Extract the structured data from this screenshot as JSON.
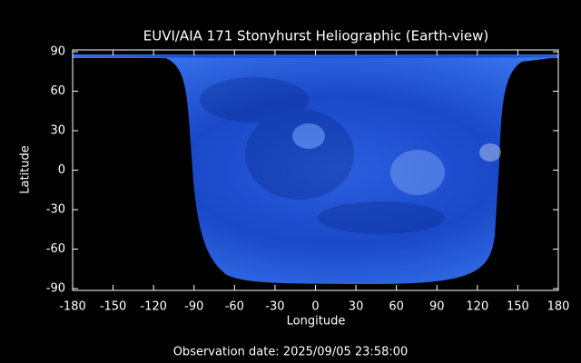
{
  "chart_data": {
    "type": "image",
    "title": "EUVI/AIA 171 Stonyhurst Heliographic (Earth-view)",
    "xlabel": "Longitude",
    "ylabel": "Latitude",
    "xlim": [
      -180,
      180
    ],
    "ylim": [
      -90,
      90
    ],
    "xticks": [
      -180,
      -150,
      -120,
      -90,
      -60,
      -30,
      0,
      30,
      60,
      90,
      120,
      150,
      180
    ],
    "yticks": [
      -90,
      -60,
      -30,
      0,
      30,
      60,
      90
    ],
    "footer": "Observation date: 2025/09/05 23:58:00"
  }
}
